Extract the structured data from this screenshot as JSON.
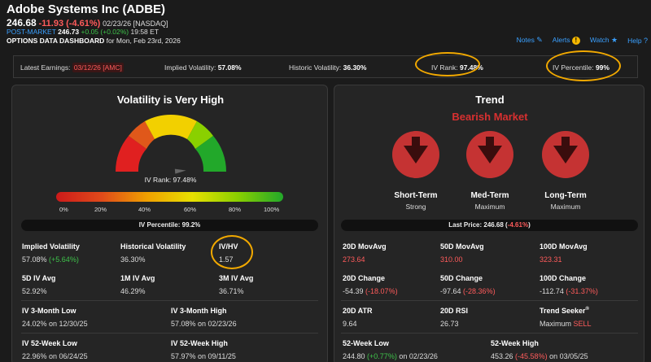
{
  "header": {
    "title": "Adobe Systems Inc (ADBE)",
    "price": "246.68",
    "change": "-11.93 (-4.61%)",
    "date_exchange": "02/23/26 [NASDAQ]",
    "post_label": "POST-MARKET",
    "post_price": "246.73",
    "post_change": "+0.05 (+0.02%)",
    "post_time": "19:58 ET",
    "dash_bold": "OPTIONS DATA DASHBOARD",
    "dash_rest": " for Mon, Feb 23rd, 2026"
  },
  "links": {
    "notes": "Notes",
    "alerts": "Alerts",
    "watch": "Watch",
    "help": "Help"
  },
  "stats": {
    "earnings_label": "Latest Earnings:",
    "earnings_value": "03/12/26 [AMC]",
    "iv_label": "Implied Volatility:",
    "iv_value": "57.08%",
    "hv_label": "Historic Volatility:",
    "hv_value": "36.30%",
    "ivrank_label": "IV Rank:",
    "ivrank_value": "97.48%",
    "ivpct_label": "IV Percentile:",
    "ivpct_value": "99%"
  },
  "left": {
    "title": "Volatility is Very High",
    "gauge_label": "IV Rank: 97.48%",
    "gauge_value": 97.48,
    "ticks": [
      "0%",
      "20%",
      "40%",
      "60%",
      "80%",
      "100%"
    ],
    "percentile_bar": "IV Percentile: 99.2%",
    "metrics": [
      {
        "label": "Implied Volatility",
        "value": "57.08%",
        "extra": "(+5.64%)"
      },
      {
        "label": "Historical Volatility",
        "value": "36.30%"
      },
      {
        "label": "IV/HV",
        "value": "1.57"
      },
      {
        "label": "5D IV Avg",
        "value": "52.92%"
      },
      {
        "label": "1M IV Avg",
        "value": "46.29%"
      },
      {
        "label": "3M IV Avg",
        "value": "36.71%"
      },
      {
        "label": "IV 3-Month Low",
        "value": "24.02% on 12/30/25"
      },
      {
        "label": "IV 3-Month High",
        "value": "57.08% on 02/23/26"
      },
      {
        "label": "IV 52-Week Low",
        "value": "22.96% on 06/24/25"
      },
      {
        "label": "IV 52-Week High",
        "value": "57.97% on 09/11/25"
      }
    ]
  },
  "right": {
    "title": "Trend",
    "market": "Bearish Market",
    "trends": [
      {
        "label": "Short-Term",
        "sub": "Strong"
      },
      {
        "label": "Med-Term",
        "sub": "Maximum"
      },
      {
        "label": "Long-Term",
        "sub": "Maximum"
      }
    ],
    "last_price_label": "Last Price: 246.68 (",
    "last_price_change": "-4.61%",
    "last_price_close": ")",
    "metrics": [
      {
        "label": "20D MovAvg",
        "value": "273.64"
      },
      {
        "label": "50D MovAvg",
        "value": "310.00"
      },
      {
        "label": "100D MovAvg",
        "value": "323.31"
      },
      {
        "label": "20D Change",
        "value": "-54.39",
        "extra": "(-18.07%)"
      },
      {
        "label": "50D Change",
        "value": "-97.64",
        "extra": "(-28.36%)"
      },
      {
        "label": "100D Change",
        "value": "-112.74",
        "extra": "(-31.37%)"
      },
      {
        "label": "20D ATR",
        "value": "9.64"
      },
      {
        "label": "20D RSI",
        "value": "26.73"
      },
      {
        "label": "Trend Seeker",
        "sup": "®",
        "value": "Maximum",
        "extra": "SELL"
      },
      {
        "label": "52-Week Low",
        "value": "244.80",
        "extra": "(+0.77%)",
        "tail": " on 02/23/26"
      },
      {
        "label": "52-Week High",
        "value": "453.26",
        "extra": "(-45.58%)",
        "tail": " on 03/05/25"
      }
    ]
  },
  "colors": {
    "accent": "#3aa0ff",
    "negative": "#ff5b5b",
    "positive": "#3ec24a",
    "highlight": "#f2a900",
    "bearish": "#c53333"
  }
}
